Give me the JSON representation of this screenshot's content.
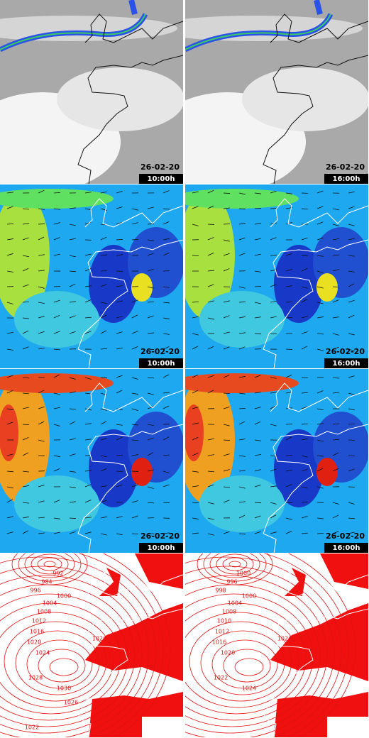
{
  "satellite": [
    {
      "date": "26-02-20",
      "time": "10:00h"
    },
    {
      "date": "26-02-20",
      "time": "16:00h"
    }
  ],
  "wind": [
    {
      "date": "26-02-20",
      "time": "10:00h"
    },
    {
      "date": "26-02-20",
      "time": "16:00h"
    }
  ],
  "gust": [
    {
      "date": "26-02-20",
      "time": "10:00h"
    },
    {
      "date": "26-02-20",
      "time": "16:00h"
    }
  ],
  "pressure": [
    {
      "isobar_labels": [
        992,
        984,
        996,
        1000,
        1004,
        1008,
        1012,
        1016,
        1020,
        1024,
        1026,
        1028,
        1030,
        1012,
        1026,
        1022
      ]
    },
    {
      "isobar_labels": [
        1000,
        996,
        998,
        1000,
        1004,
        1008,
        1010,
        1012,
        1016,
        1020,
        1026,
        1022,
        1024,
        1022
      ]
    }
  ]
}
